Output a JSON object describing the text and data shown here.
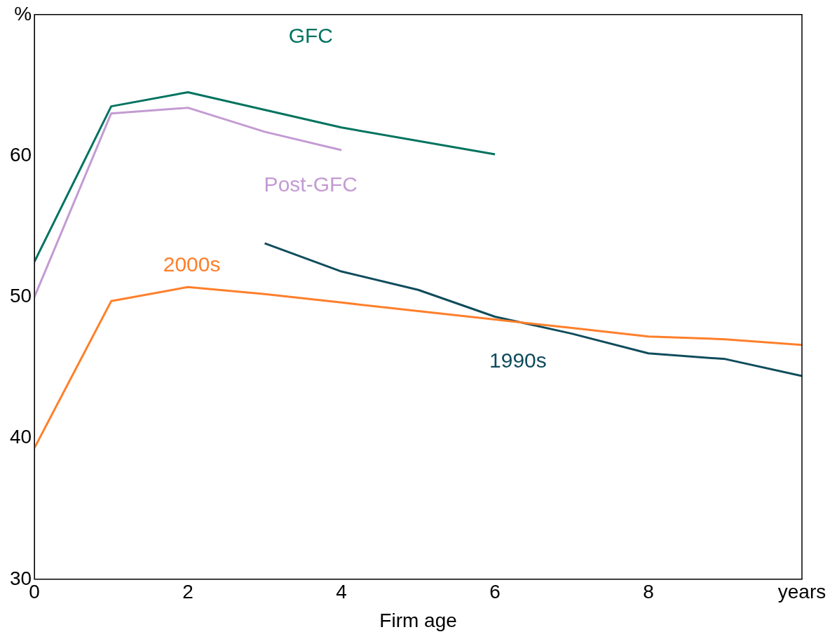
{
  "chart_data": {
    "type": "line",
    "xlabel": "Firm age",
    "xlim": [
      0,
      10
    ],
    "xticks": [
      0,
      2,
      4,
      6,
      8,
      {
        "value": 10,
        "label": "years"
      }
    ],
    "ylim": [
      30,
      70
    ],
    "yticks": [
      30,
      40,
      50,
      60,
      {
        "value": 70,
        "label": "%"
      }
    ],
    "grid": false,
    "legend": false,
    "marker": "none",
    "line_style": "solid",
    "series": [
      {
        "name": "GFC",
        "color": "#00735f",
        "x": [
          0,
          1,
          2,
          4,
          6
        ],
        "values": [
          52.5,
          63.5,
          64.5,
          62.0,
          60.1
        ]
      },
      {
        "name": "Post-GFC",
        "color": "#c39bd3",
        "x": [
          0,
          1,
          2,
          3,
          4
        ],
        "values": [
          50.0,
          63.0,
          63.4,
          61.7,
          60.4
        ]
      },
      {
        "name": "2000s",
        "color": "#ff7f2a",
        "x": [
          0,
          1,
          2,
          3,
          4,
          5,
          6,
          7,
          8,
          9,
          10
        ],
        "values": [
          39.3,
          49.7,
          50.7,
          50.2,
          49.6,
          49.0,
          48.4,
          47.8,
          47.2,
          47.0,
          46.6
        ]
      },
      {
        "name": "1990s",
        "color": "#0f4c5c",
        "x": [
          3,
          4,
          5,
          6,
          7,
          8,
          9,
          10
        ],
        "values": [
          53.8,
          51.8,
          50.5,
          48.6,
          47.4,
          46.0,
          45.6,
          44.4
        ]
      }
    ]
  }
}
